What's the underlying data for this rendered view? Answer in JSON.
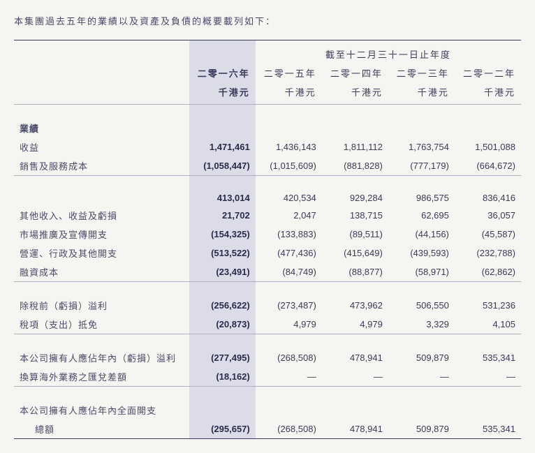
{
  "intro": "本集團過去五年的業績以及資產及負債的概要載列如下：",
  "superHeader": "截至十二月三十一日止年度",
  "years": {
    "y2016": "二零一六年",
    "y2015": "二零一五年",
    "y2014": "二零一四年",
    "y2013": "二零一三年",
    "y2012": "二零一二年"
  },
  "unit": "千港元",
  "labels": {
    "results": "業績",
    "revenue": "收益",
    "cogs": "銷售及服務成本",
    "other_income": "其他收入、收益及虧損",
    "marketing": "市場推廣及宣傳開支",
    "operating": "營運、行政及其他開支",
    "finance": "融資成本",
    "pbt": "除稅前（虧損）溢利",
    "tax": "稅項（支出）抵免",
    "profit_owners": "本公司擁有人應佔年內（虧損）溢利",
    "fx": "換算海外業務之匯兌差額",
    "total_comp1": "本公司擁有人應佔年內全面開支",
    "total_comp2": "總額"
  },
  "rows": {
    "revenue": {
      "v2016": "1,471,461",
      "v2015": "1,436,143",
      "v2014": "1,811,112",
      "v2013": "1,763,754",
      "v2012": "1,501,088"
    },
    "cogs": {
      "v2016": "(1,058,447)",
      "v2015": "(1,015,609)",
      "v2014": "(881,828)",
      "v2013": "(777,179)",
      "v2012": "(664,672)"
    },
    "gross": {
      "v2016": "413,014",
      "v2015": "420,534",
      "v2014": "929,284",
      "v2013": "986,575",
      "v2012": "836,416"
    },
    "other_income": {
      "v2016": "21,702",
      "v2015": "2,047",
      "v2014": "138,715",
      "v2013": "62,695",
      "v2012": "36,057"
    },
    "marketing": {
      "v2016": "(154,325)",
      "v2015": "(133,883)",
      "v2014": "(89,511)",
      "v2013": "(44,156)",
      "v2012": "(45,587)"
    },
    "operating": {
      "v2016": "(513,522)",
      "v2015": "(477,436)",
      "v2014": "(415,649)",
      "v2013": "(439,593)",
      "v2012": "(232,788)"
    },
    "finance": {
      "v2016": "(23,491)",
      "v2015": "(84,749)",
      "v2014": "(88,877)",
      "v2013": "(58,971)",
      "v2012": "(62,862)"
    },
    "pbt": {
      "v2016": "(256,622)",
      "v2015": "(273,487)",
      "v2014": "473,962",
      "v2013": "506,550",
      "v2012": "531,236"
    },
    "tax": {
      "v2016": "(20,873)",
      "v2015": "4,979",
      "v2014": "4,979",
      "v2013": "3,329",
      "v2012": "4,105"
    },
    "profit_owners": {
      "v2016": "(277,495)",
      "v2015": "(268,508)",
      "v2014": "478,941",
      "v2013": "509,879",
      "v2012": "535,341"
    },
    "fx": {
      "v2016": "(18,162)",
      "v2015": "—",
      "v2014": "—",
      "v2013": "—",
      "v2012": "—"
    },
    "total_comp": {
      "v2016": "(295,657)",
      "v2015": "(268,508)",
      "v2014": "478,941",
      "v2013": "509,879",
      "v2012": "535,341"
    }
  },
  "colors": {
    "background": "#f5f5f2",
    "highlight": "#dcdce8",
    "text": "#3a3a5a",
    "border": "#3a3a5a"
  }
}
